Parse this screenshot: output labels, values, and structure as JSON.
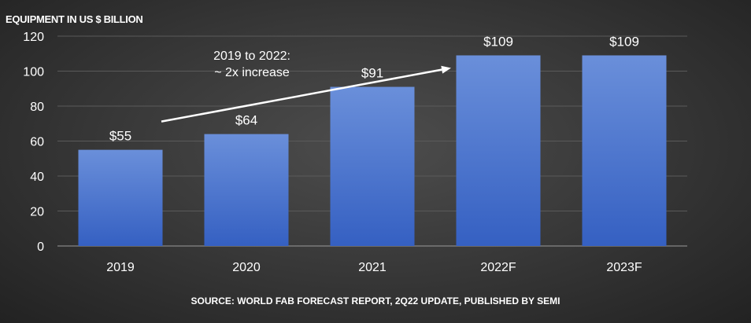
{
  "chart_data": {
    "type": "bar",
    "title": "EQUIPMENT IN US $ BILLION",
    "ylabel": "EQUIPMENT IN US $ BILLION",
    "xlabel": "",
    "categories": [
      "2019",
      "2020",
      "2021",
      "2022F",
      "2023F"
    ],
    "values": [
      55,
      64,
      91,
      109,
      109
    ],
    "data_labels": [
      "$55",
      "$64",
      "$91",
      "$109",
      "$109"
    ],
    "ylim": [
      0,
      120
    ],
    "yticks": [
      0,
      20,
      40,
      60,
      80,
      100,
      120
    ],
    "grid": true,
    "annotation": {
      "line1": "2019 to 2022:",
      "line2": "~ 2x increase",
      "arrow_from": "2019",
      "arrow_to": "2022F"
    },
    "source": "SOURCE: WORLD FAB FORECAST REPORT, 2Q22 UPDATE, PUBLISHED BY SEMI",
    "colors": {
      "bar_top": "#6a8fda",
      "bar_bottom": "#3560c2",
      "grid": "#5a5a5a"
    }
  }
}
